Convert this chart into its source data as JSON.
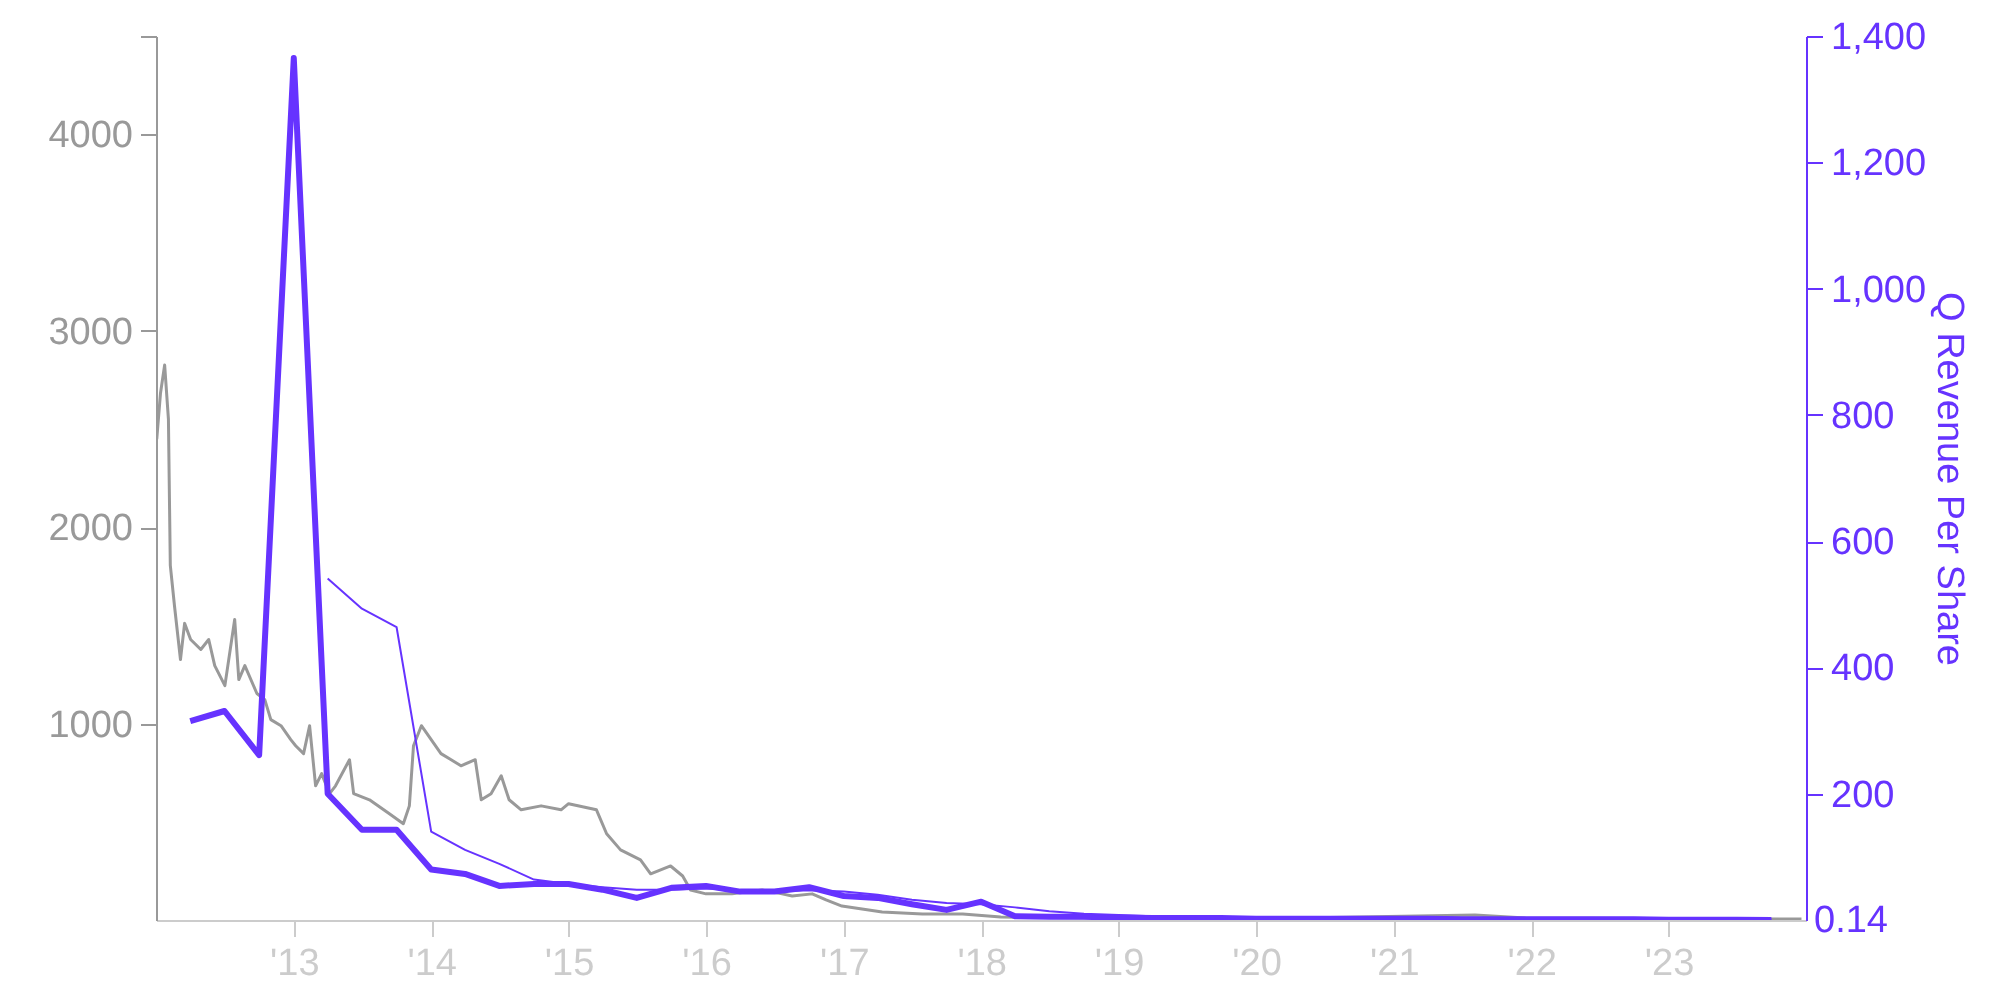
{
  "chart_data": {
    "type": "line",
    "y2label": "Q Revenue Per Share",
    "xlim": [
      "2012-01-01",
      "2024-01-01"
    ],
    "xticks": [
      {
        "value": "2013-01-01",
        "label": "'13"
      },
      {
        "value": "2014-01-01",
        "label": "'14"
      },
      {
        "value": "2015-01-01",
        "label": "'15"
      },
      {
        "value": "2016-01-01",
        "label": "'16"
      },
      {
        "value": "2017-01-01",
        "label": "'17"
      },
      {
        "value": "2018-01-01",
        "label": "'18"
      },
      {
        "value": "2019-01-01",
        "label": "'19"
      },
      {
        "value": "2020-01-01",
        "label": "'20"
      },
      {
        "value": "2021-01-01",
        "label": "'21"
      },
      {
        "value": "2022-01-01",
        "label": "'22"
      },
      {
        "value": "2023-01-01",
        "label": "'23"
      }
    ],
    "ylim": [
      0,
      4500
    ],
    "yticks": [
      1000,
      2000,
      3000,
      4000,
      {
        "value": 4500,
        "label": null
      }
    ],
    "y2lim": [
      0,
      1400
    ],
    "y2ticks": [
      {
        "value": 200,
        "label": "200"
      },
      400,
      600,
      800,
      {
        "value": 1000,
        "label": "1,000"
      },
      {
        "value": 1200,
        "label": "1,200"
      },
      {
        "value": 1400,
        "label": "1,400"
      }
    ],
    "grid": false,
    "line_style": "solid",
    "marker": "none",
    "series": [
      {
        "color": "#999999",
        "x": [
          "2012-01-03",
          "2012-01-13",
          "2012-01-24",
          "2012-02-03",
          "2012-02-08",
          "2012-02-19",
          "2012-03-06",
          "2012-03-17",
          "2012-04-02",
          "2012-04-29",
          "2012-05-20",
          "2012-06-05",
          "2012-07-02",
          "2012-07-28",
          "2012-08-08",
          "2012-08-24",
          "2012-09-25",
          "2012-10-16",
          "2012-11-01",
          "2012-11-28",
          "2012-12-24",
          "2013-01-06",
          "2013-01-27",
          "2013-02-12",
          "2013-02-28",
          "2013-03-16",
          "2013-04-06",
          "2013-04-22",
          "2013-05-29",
          "2013-06-09",
          "2013-07-21",
          "2013-09-12",
          "2013-10-19",
          "2013-11-04",
          "2013-11-15",
          "2013-12-06",
          "2014-01-01",
          "2014-01-27",
          "2014-02-23",
          "2014-03-21",
          "2014-04-28",
          "2014-05-14",
          "2014-06-09",
          "2014-07-06",
          "2014-07-27",
          "2014-08-28",
          "2014-10-20",
          "2014-12-12",
          "2015-01-01",
          "2015-03-16",
          "2015-04-12",
          "2015-05-19",
          "2015-07-11",
          "2015-08-07",
          "2015-09-29",
          "2015-10-31",
          "2015-11-21",
          "2016-01-01",
          "2016-03-10",
          "2016-05-29",
          "2016-07-21",
          "2016-08-17",
          "2016-10-09",
          "2016-11-15",
          "2016-12-27",
          "2017-04-13",
          "2017-07-29",
          "2017-11-13",
          "2018-02-22",
          "2018-11-16",
          "2020-05-01",
          "2021-08-05",
          "2021-12-17",
          "2023-12-20"
        ],
        "values": [
          2448,
          2683,
          2825,
          2550,
          1805,
          1601,
          1326,
          1510,
          1428,
          1377,
          1428,
          1295,
          1193,
          1530,
          1224,
          1295,
          1153,
          1122,
          1020,
          989,
          918,
          887,
          847,
          989,
          683,
          745,
          643,
          683,
          816,
          643,
          612,
          541,
          490,
          581,
          887,
          989,
          918,
          847,
          816,
          785,
          816,
          612,
          643,
          734,
          612,
          561,
          581,
          561,
          592,
          561,
          439,
          357,
          306,
          235,
          275,
          224,
          153,
          133,
          133,
          153,
          133,
          122,
          133,
          102,
          71,
          41,
          31,
          31,
          15,
          10,
          10,
          25,
          10,
          5
        ]
      },
      {
        "axis": "y2",
        "color": "#6633ff",
        "x": [
          "2012-04-01",
          "2012-07-01",
          "2012-10-01",
          "2013-01-01",
          "2013-04-01",
          "2013-07-01",
          "2013-10-01",
          "2014-01-01",
          "2014-04-01",
          "2014-07-01",
          "2014-10-01",
          "2015-01-01",
          "2015-04-01",
          "2015-07-01",
          "2015-10-01",
          "2016-01-01",
          "2016-04-01",
          "2016-07-01",
          "2016-10-01",
          "2017-01-01",
          "2017-04-01",
          "2017-07-01",
          "2017-10-01",
          "2018-01-01",
          "2018-04-01",
          "2018-07-01",
          "2018-10-01",
          "2019-01-01",
          "2019-04-01",
          "2019-07-01",
          "2019-10-01",
          "2020-01-01",
          "2020-04-01",
          "2020-07-01",
          "2020-10-01",
          "2021-01-01",
          "2021-04-01",
          "2021-07-01",
          "2021-10-01",
          "2022-01-01",
          "2022-04-01",
          "2022-07-01",
          "2022-10-01",
          "2023-01-01",
          "2023-04-01",
          "2023-07-01",
          "2023-10-01"
        ],
        "values": [
          315,
          331,
          261,
          1365,
          200,
          143,
          143,
          80,
          73,
          54,
          57,
          57,
          48,
          35,
          51,
          54,
          45,
          45,
          52,
          38,
          35,
          25,
          16,
          29,
          6,
          5,
          5,
          4,
          3,
          3,
          3,
          2,
          2,
          2,
          2,
          2,
          2,
          1,
          1,
          1,
          1,
          1,
          1,
          0.5,
          0.5,
          0.3,
          0.14
        ],
        "value_labels": [
          null,
          null,
          null,
          null,
          null,
          null,
          null,
          null,
          null,
          null,
          null,
          null,
          null,
          null,
          null,
          null,
          null,
          null,
          null,
          null,
          null,
          null,
          null,
          null,
          null,
          null,
          null,
          null,
          null,
          null,
          null,
          null,
          null,
          null,
          null,
          null,
          null,
          null,
          null,
          null,
          null,
          null,
          null,
          null,
          null,
          null,
          "0.14"
        ]
      },
      {
        "axis": "y2",
        "color": "#6633ff",
        "x": [
          "2013-04-01",
          "2013-07-01",
          "2013-10-01",
          "2014-01-01",
          "2014-04-01",
          "2014-07-01",
          "2014-10-01",
          "2015-01-01",
          "2015-04-01",
          "2015-07-01",
          "2015-10-01",
          "2016-01-01",
          "2016-04-01",
          "2016-07-01",
          "2016-10-01",
          "2017-01-01",
          "2017-04-01",
          "2017-07-01",
          "2017-10-01",
          "2018-01-01",
          "2018-04-01",
          "2018-07-01",
          "2018-10-01",
          "2019-01-01",
          "2019-04-01",
          "2019-07-01",
          "2019-10-01",
          "2020-01-01",
          "2020-07-01",
          "2021-01-01",
          "2021-07-01",
          "2022-01-01",
          "2022-07-01",
          "2023-01-01",
          "2023-10-01"
        ],
        "values": [
          541,
          493,
          464,
          140,
          111,
          89,
          64,
          57,
          52,
          48,
          48,
          50,
          47,
          45,
          47,
          45,
          40,
          32,
          27,
          25,
          20,
          14,
          10,
          8,
          6,
          5,
          4,
          3,
          2,
          2,
          2,
          1,
          1,
          1,
          1
        ]
      }
    ]
  }
}
